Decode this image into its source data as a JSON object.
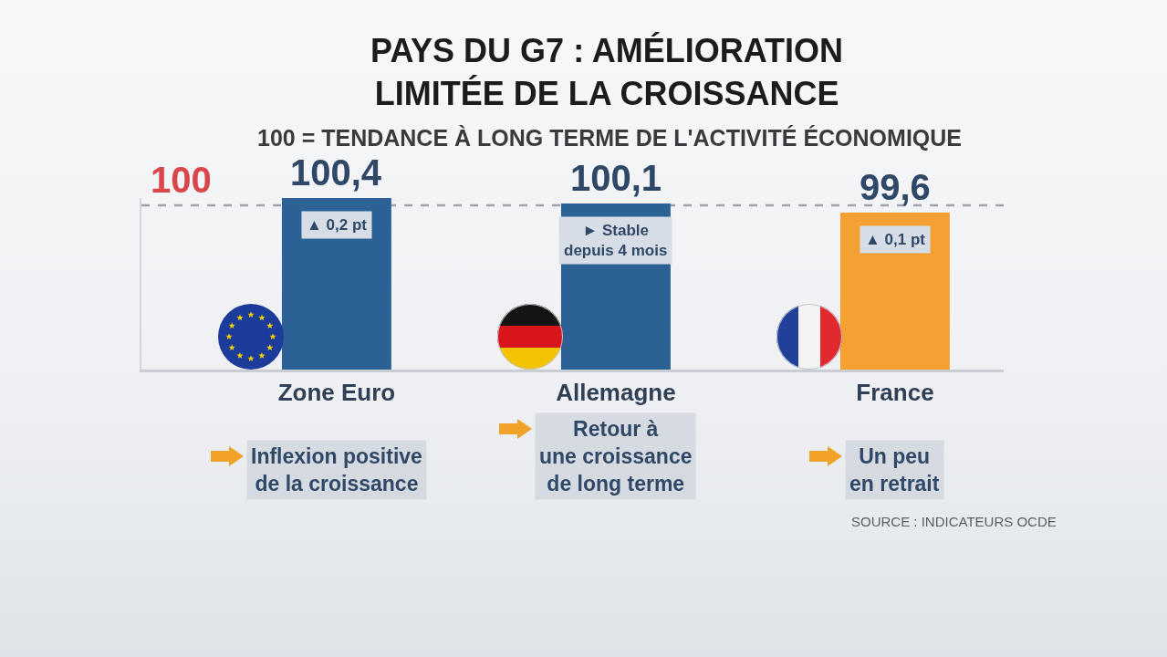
{
  "chart_data": {
    "type": "bar",
    "title": "PAYS DU G7 : AMÉLIORATION\nLIMITÉE DE LA CROISSANCE",
    "subtitle": "100 = TENDANCE À LONG TERME DE L'ACTIVITÉ ÉCONOMIQUE",
    "categories": [
      "Zone Euro",
      "Allemagne",
      "France"
    ],
    "values": [
      100.4,
      100.1,
      99.6
    ],
    "colors": [
      "#2c6196",
      "#2c6196",
      "#f5a033"
    ],
    "value_labels": [
      "100,4",
      "100,1",
      "99,6"
    ],
    "ylim": [
      91,
      100.4
    ],
    "tick_labels": "x",
    "ref_lines": [
      {
        "axis": "y",
        "value": 100,
        "label": "100",
        "color": "#a0a4aa",
        "line_style": "dashed"
      }
    ],
    "annotations": [
      "▲ 0,2 pt",
      "► Stable\ndepuis 4 mois",
      "▲ 0,1 pt",
      "Inflexion positive\nde la croissance",
      "Retour à\nune croissance\nde long terme",
      "Un peu\nen retrait",
      "SOURCE : INDICATEURS OCDE"
    ]
  }
}
